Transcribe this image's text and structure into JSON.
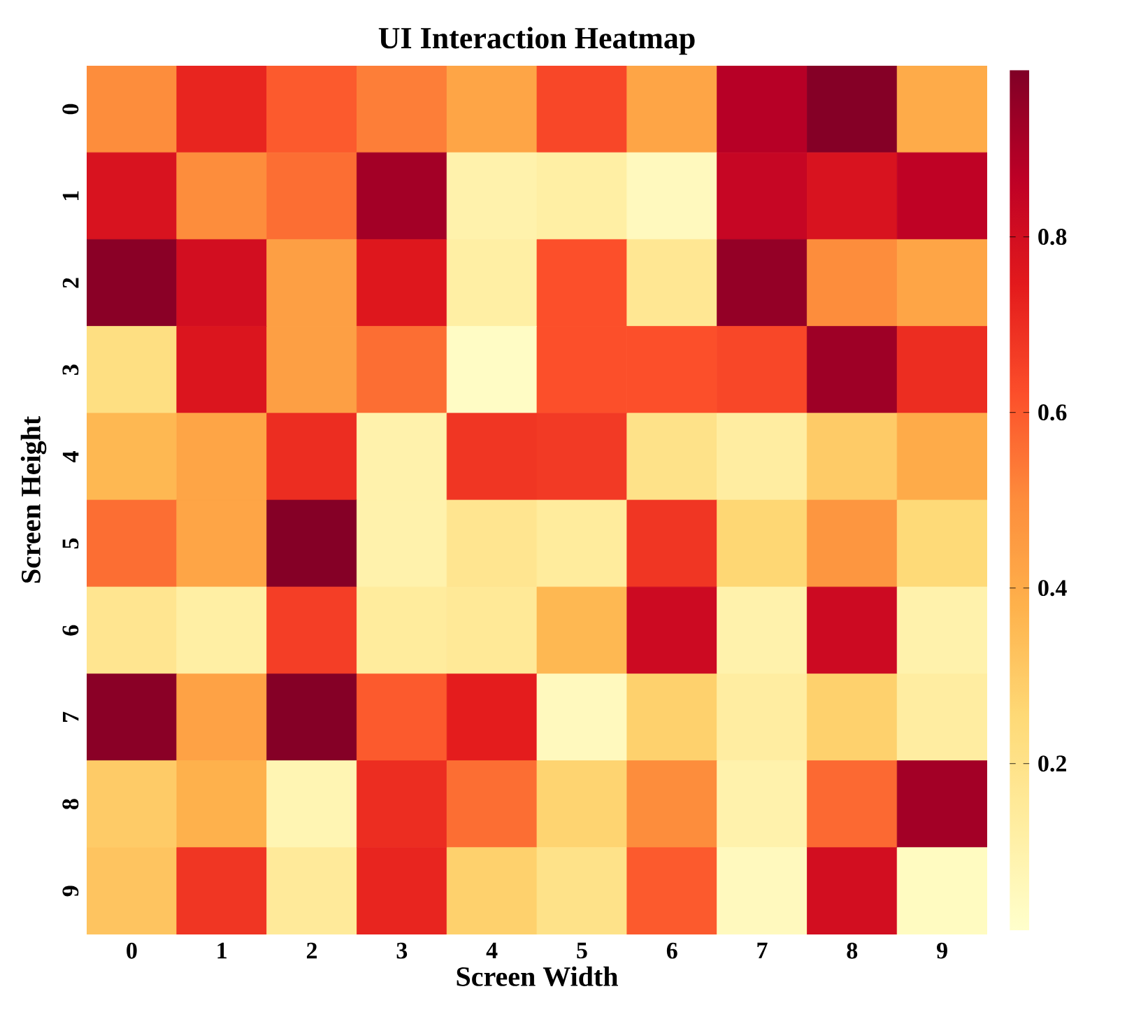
{
  "chart_data": {
    "type": "heatmap",
    "title": "UI Interaction Heatmap",
    "xlabel": "Screen Width",
    "ylabel": "Screen Height",
    "categories": [
      "0",
      "1",
      "2",
      "3",
      "4",
      "5",
      "6",
      "7",
      "8",
      "9"
    ],
    "y_categories": [
      "0",
      "1",
      "2",
      "3",
      "4",
      "5",
      "6",
      "7",
      "8",
      "9"
    ],
    "cells": [
      [
        0.5,
        0.72,
        0.6,
        0.53,
        0.42,
        0.64,
        0.42,
        0.88,
        0.98,
        0.4
      ],
      [
        0.78,
        0.5,
        0.56,
        0.92,
        0.1,
        0.12,
        0.05,
        0.84,
        0.78,
        0.86
      ],
      [
        0.97,
        0.8,
        0.44,
        0.76,
        0.12,
        0.62,
        0.17,
        0.95,
        0.5,
        0.42
      ],
      [
        0.22,
        0.77,
        0.44,
        0.56,
        0.03,
        0.62,
        0.62,
        0.64,
        0.93,
        0.7
      ],
      [
        0.36,
        0.42,
        0.7,
        0.1,
        0.68,
        0.67,
        0.2,
        0.13,
        0.3,
        0.4
      ],
      [
        0.56,
        0.42,
        0.98,
        0.1,
        0.18,
        0.14,
        0.68,
        0.26,
        0.47,
        0.25
      ],
      [
        0.18,
        0.12,
        0.66,
        0.14,
        0.16,
        0.36,
        0.82,
        0.1,
        0.82,
        0.1
      ],
      [
        0.97,
        0.43,
        0.98,
        0.6,
        0.74,
        0.05,
        0.28,
        0.13,
        0.28,
        0.13
      ],
      [
        0.3,
        0.38,
        0.08,
        0.7,
        0.56,
        0.27,
        0.5,
        0.1,
        0.57,
        0.92
      ],
      [
        0.32,
        0.68,
        0.15,
        0.72,
        0.28,
        0.2,
        0.6,
        0.05,
        0.8,
        0.04
      ]
    ],
    "clim": [
      0.01,
      0.99
    ],
    "cticks": [
      0.2,
      0.4,
      0.6,
      0.8
    ]
  }
}
